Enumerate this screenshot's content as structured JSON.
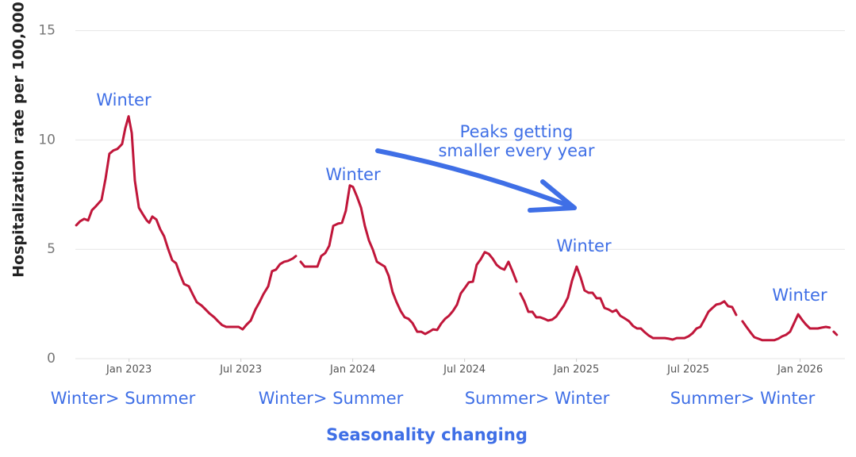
{
  "chart_data": {
    "type": "line",
    "y_label": "Hospitalization rate per 100,000",
    "color": "#c0163a",
    "grid": true,
    "xlim": [
      2022.76,
      2026.2
    ],
    "xticks": [
      {
        "value": 2023.0,
        "label": "Jan 2023"
      },
      {
        "value": 2023.5,
        "label": "Jul 2023"
      },
      {
        "value": 2024.0,
        "label": "Jan 2024"
      },
      {
        "value": 2024.5,
        "label": "Jul 2024"
      },
      {
        "value": 2025.0,
        "label": "Jan 2025"
      },
      {
        "value": 2025.5,
        "label": "Jul 2025"
      },
      {
        "value": 2026.0,
        "label": "Jan 2026"
      }
    ],
    "ylim": [
      0,
      16.4
    ],
    "yticks": [
      0,
      5,
      10,
      15
    ],
    "x": [
      2022.764,
      2022.781,
      2022.799,
      2022.817,
      2022.834,
      2022.852,
      2022.877,
      2022.895,
      2022.912,
      2022.93,
      2022.948,
      2022.969,
      2022.983,
      2022.998,
      2023.012,
      2023.026,
      2023.044,
      2023.061,
      2023.079,
      2023.09,
      2023.104,
      2023.122,
      2023.139,
      2023.157,
      2023.175,
      2023.193,
      2023.21,
      2023.228,
      2023.246,
      2023.267,
      2023.285,
      2023.303,
      2023.324,
      2023.342,
      2023.359,
      2023.381,
      2023.398,
      2023.416,
      2023.434,
      2023.455,
      2023.473,
      2023.49,
      2023.508,
      2023.526,
      2023.544,
      2023.565,
      2023.583,
      2023.6,
      2023.622,
      2023.639,
      2023.657,
      2023.675,
      2023.693,
      2023.71,
      2023.732,
      2023.746,
      2023.757,
      2023.767,
      2023.785,
      2023.803,
      2023.824,
      2023.842,
      2023.859,
      2023.877,
      2023.895,
      2023.913,
      2023.934,
      2023.952,
      2023.969,
      2023.987,
      2024.001,
      2024.019,
      2024.037,
      2024.054,
      2024.072,
      2024.09,
      2024.108,
      2024.125,
      2024.143,
      2024.161,
      2024.178,
      2024.196,
      2024.214,
      2024.232,
      2024.249,
      2024.267,
      2024.288,
      2024.306,
      2024.324,
      2024.342,
      2024.359,
      2024.377,
      2024.395,
      2024.413,
      2024.43,
      2024.448,
      2024.466,
      2024.483,
      2024.501,
      2024.519,
      2024.537,
      2024.554,
      2024.572,
      2024.59,
      2024.608,
      2024.625,
      2024.643,
      2024.661,
      2024.678,
      2024.696,
      2024.714,
      2024.732,
      2024.739,
      2024.749,
      2024.767,
      2024.785,
      2024.803,
      2024.82,
      2024.838,
      2024.856,
      2024.873,
      2024.891,
      2024.909,
      2024.927,
      2024.944,
      2024.962,
      2024.98,
      2025.001,
      2025.019,
      2025.036,
      2025.054,
      2025.072,
      2025.09,
      2025.107,
      2025.125,
      2025.143,
      2025.161,
      2025.178,
      2025.196,
      2025.214,
      2025.235,
      2025.253,
      2025.271,
      2025.288,
      2025.306,
      2025.324,
      2025.342,
      2025.359,
      2025.377,
      2025.395,
      2025.413,
      2025.43,
      2025.448,
      2025.466,
      2025.483,
      2025.501,
      2025.519,
      2025.537,
      2025.554,
      2025.572,
      2025.59,
      2025.608,
      2025.625,
      2025.643,
      2025.661,
      2025.678,
      2025.696,
      2025.714,
      2025.728,
      2025.742,
      2025.76,
      2025.778,
      2025.795,
      2025.813,
      2025.831,
      2025.849,
      2025.866,
      2025.884,
      2025.902,
      2025.92,
      2025.937,
      2025.955,
      2025.973,
      2025.991,
      2026.008,
      2026.026,
      2026.044,
      2026.061,
      2026.079,
      2026.097,
      2026.115,
      2026.132,
      2026.139,
      2026.15,
      2026.164
    ],
    "values": [
      6.1,
      6.28,
      6.39,
      6.32,
      6.79,
      6.97,
      7.26,
      8.24,
      9.37,
      9.52,
      9.59,
      9.81,
      10.53,
      11.08,
      10.31,
      8.14,
      6.9,
      6.61,
      6.32,
      6.21,
      6.5,
      6.36,
      5.92,
      5.59,
      5.01,
      4.5,
      4.36,
      3.85,
      3.41,
      3.31,
      2.94,
      2.58,
      2.43,
      2.25,
      2.07,
      1.89,
      1.71,
      1.53,
      1.45,
      1.45,
      1.45,
      1.45,
      1.34,
      1.56,
      1.74,
      2.25,
      2.58,
      2.94,
      3.31,
      4.0,
      4.07,
      4.32,
      4.43,
      4.47,
      4.58,
      4.69,
      null,
      4.43,
      4.21,
      4.21,
      4.21,
      4.21,
      4.69,
      4.83,
      5.16,
      6.07,
      6.17,
      6.21,
      6.76,
      7.92,
      7.85,
      7.41,
      6.9,
      6.07,
      5.41,
      4.98,
      4.43,
      4.32,
      4.21,
      3.78,
      3.05,
      2.58,
      2.18,
      1.89,
      1.82,
      1.63,
      1.23,
      1.23,
      1.13,
      1.23,
      1.34,
      1.31,
      1.6,
      1.82,
      1.96,
      2.18,
      2.47,
      2.98,
      3.23,
      3.49,
      3.52,
      4.29,
      4.54,
      4.87,
      4.79,
      4.58,
      4.29,
      4.14,
      4.07,
      4.43,
      4.0,
      3.52,
      null,
      2.98,
      2.62,
      2.14,
      2.14,
      1.89,
      1.89,
      1.82,
      1.74,
      1.78,
      1.92,
      2.18,
      2.43,
      2.8,
      3.56,
      4.21,
      3.7,
      3.12,
      3.01,
      3.01,
      2.76,
      2.76,
      2.32,
      2.25,
      2.14,
      2.22,
      1.96,
      1.85,
      1.71,
      1.49,
      1.38,
      1.38,
      1.2,
      1.05,
      0.94,
      0.94,
      0.94,
      0.94,
      0.91,
      0.87,
      0.94,
      0.94,
      0.94,
      1.02,
      1.16,
      1.38,
      1.45,
      1.78,
      2.14,
      2.32,
      2.47,
      2.51,
      2.62,
      2.4,
      2.36,
      2.0,
      null,
      1.71,
      1.45,
      1.2,
      0.98,
      0.91,
      0.84,
      0.84,
      0.84,
      0.84,
      0.91,
      1.02,
      1.09,
      1.23,
      1.63,
      2.03,
      1.78,
      1.56,
      1.38,
      1.38,
      1.38,
      1.42,
      1.45,
      1.42,
      null,
      1.23,
      1.09
    ],
    "annotations": [
      "Winter",
      "Winter",
      "Winter",
      "Winter",
      "Peaks getting",
      "smaller every year"
    ],
    "period_labels": [
      "Winter> Summer",
      "Winter> Summer",
      "Summer> Winter",
      "Summer> Winter"
    ],
    "footer": "Seasonality changing"
  }
}
